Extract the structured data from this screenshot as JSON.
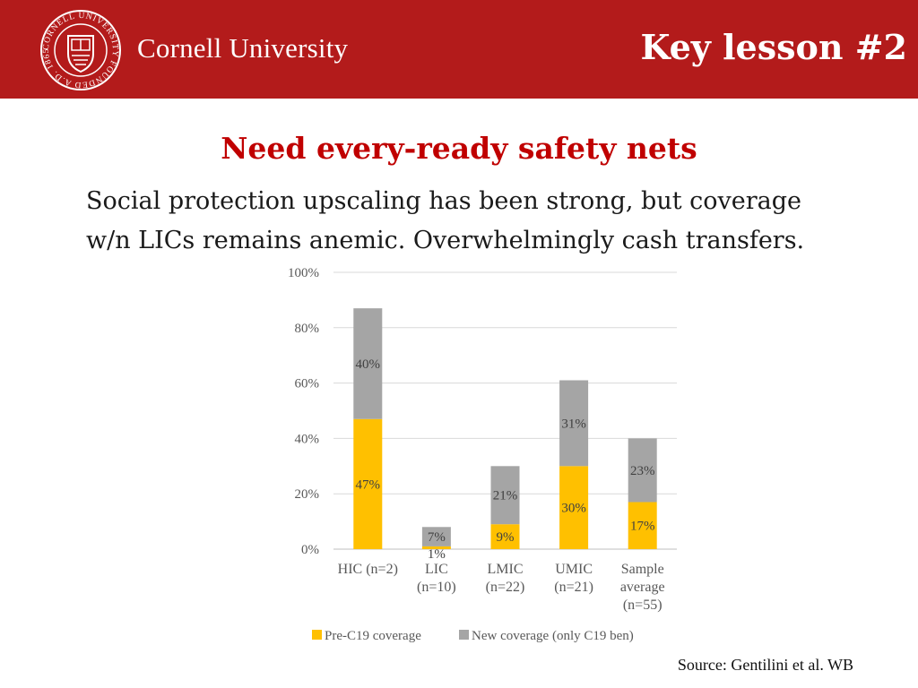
{
  "header": {
    "brand": "Cornell University",
    "lesson": "Key lesson #2",
    "seal_text": "CORNELL UNIVERSITY FOUNDED A.D. 1865",
    "colors": {
      "banner": "#b31b1b",
      "text": "#ffffff"
    }
  },
  "heading": "Need every-ready safety nets",
  "subtitle_lines": [
    "Social protection upscaling has been strong, but coverage",
    "w/n LICs remains anemic. Overwhelmingly cash transfers."
  ],
  "chart_data": {
    "type": "bar",
    "stacked": true,
    "categories": [
      [
        "HIC (n=2)"
      ],
      [
        "LIC",
        "(n=10)"
      ],
      [
        "LMIC",
        "(n=22)"
      ],
      [
        "UMIC",
        "(n=21)"
      ],
      [
        "Sample",
        "average",
        "(n=55)"
      ]
    ],
    "series": [
      {
        "name": "Pre-C19 coverage",
        "color": "#ffc000",
        "values": [
          47,
          1,
          9,
          30,
          17
        ],
        "labels": [
          "47%",
          "1%",
          "9%",
          "30%",
          "17%"
        ]
      },
      {
        "name": "New coverage (only C19 ben)",
        "color": "#a5a5a5",
        "values": [
          40,
          7,
          21,
          31,
          23
        ],
        "labels": [
          "40%",
          "7%",
          "21%",
          "31%",
          "23%"
        ]
      }
    ],
    "yticks": [
      "0%",
      "20%",
      "40%",
      "60%",
      "80%",
      "100%"
    ],
    "ylim": [
      0,
      100
    ],
    "grid": true,
    "legend": "bottom"
  },
  "source": "Source: Gentilini et al. WB"
}
